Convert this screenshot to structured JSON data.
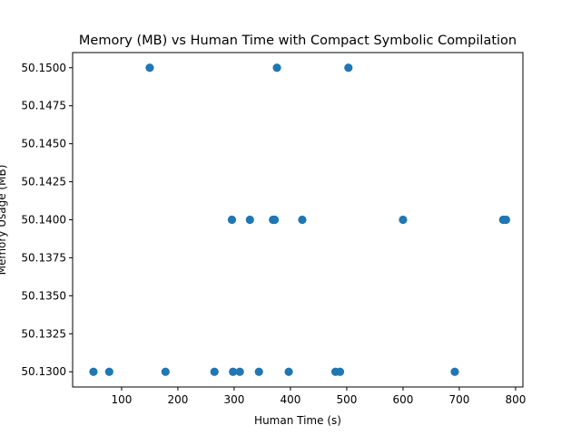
{
  "chart_data": {
    "type": "scatter",
    "title": "Memory (MB) vs Human Time with Compact Symbolic Compilation",
    "xlabel": "Human Time (s)",
    "ylabel": "Memory Usage (MB)",
    "xlim": [
      13,
      813
    ],
    "ylim": [
      50.129,
      50.151
    ],
    "x_ticks": [
      100,
      200,
      300,
      400,
      500,
      600,
      700,
      800
    ],
    "y_ticks": [
      50.13,
      50.1325,
      50.135,
      50.1375,
      50.14,
      50.1425,
      50.145,
      50.1475,
      50.15
    ],
    "x_tick_labels": [
      "100",
      "200",
      "300",
      "400",
      "500",
      "600",
      "700",
      "800"
    ],
    "y_tick_labels": [
      "50.1300",
      "50.1325",
      "50.1350",
      "50.1375",
      "50.1400",
      "50.1425",
      "50.1450",
      "50.1475",
      "50.1500"
    ],
    "grid": false,
    "marker_color": "#1f77b4",
    "points": [
      {
        "x": 150,
        "y": 50.15
      },
      {
        "x": 376,
        "y": 50.15
      },
      {
        "x": 503,
        "y": 50.15
      },
      {
        "x": 296,
        "y": 50.14
      },
      {
        "x": 328,
        "y": 50.14
      },
      {
        "x": 369,
        "y": 50.14
      },
      {
        "x": 372,
        "y": 50.14
      },
      {
        "x": 421,
        "y": 50.14
      },
      {
        "x": 600,
        "y": 50.14
      },
      {
        "x": 778,
        "y": 50.14
      },
      {
        "x": 783,
        "y": 50.14
      },
      {
        "x": 50,
        "y": 50.13
      },
      {
        "x": 78,
        "y": 50.13
      },
      {
        "x": 178,
        "y": 50.13
      },
      {
        "x": 265,
        "y": 50.13
      },
      {
        "x": 298,
        "y": 50.13
      },
      {
        "x": 310,
        "y": 50.13
      },
      {
        "x": 344,
        "y": 50.13
      },
      {
        "x": 397,
        "y": 50.13
      },
      {
        "x": 480,
        "y": 50.13
      },
      {
        "x": 488,
        "y": 50.13
      },
      {
        "x": 692,
        "y": 50.13
      }
    ]
  }
}
